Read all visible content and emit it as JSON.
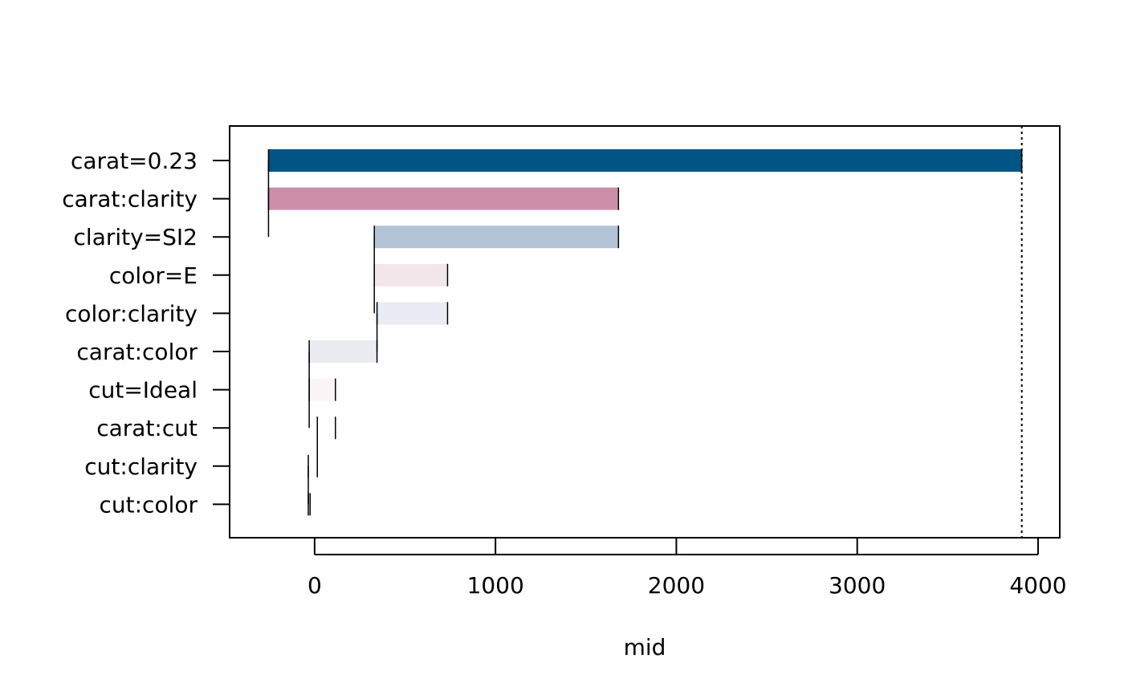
{
  "chart_data": {
    "type": "bar",
    "title": "",
    "xlabel": "mid",
    "ylabel": "",
    "xlim": [
      -470,
      4120
    ],
    "x_ticks": [
      0,
      1000,
      2000,
      3000,
      4000
    ],
    "x_tick_labels": [
      "0",
      "1000",
      "2000",
      "3000",
      "4000"
    ],
    "grid": false,
    "reference_line": 3910,
    "bars": [
      {
        "label": "carat=0.23",
        "start": -255,
        "end": 3910,
        "color": "#005587"
      },
      {
        "label": "carat:clarity",
        "start": -255,
        "end": 1680,
        "color": "#CC8FAA"
      },
      {
        "label": "clarity=SI2",
        "start": 330,
        "end": 1680,
        "color": "#B3C3D6"
      },
      {
        "label": "color=E",
        "start": 330,
        "end": 735,
        "color": "#F3E6EB"
      },
      {
        "label": "color:clarity",
        "start": 345,
        "end": 735,
        "color": "#E9ECF4"
      },
      {
        "label": "carat:color",
        "start": -30,
        "end": 345,
        "color": "#E9EDF2"
      },
      {
        "label": "cut=Ideal",
        "start": -30,
        "end": 115,
        "color": "#FBF5F7"
      },
      {
        "label": "carat:cut",
        "start": 15,
        "end": 115,
        "color": "#FFFFFF"
      },
      {
        "label": "cut:clarity",
        "start": -35,
        "end": 15,
        "color": "#FFFFFF"
      },
      {
        "label": "cut:color",
        "start": -35,
        "end": -25,
        "color": "#FFFFFF"
      }
    ]
  }
}
